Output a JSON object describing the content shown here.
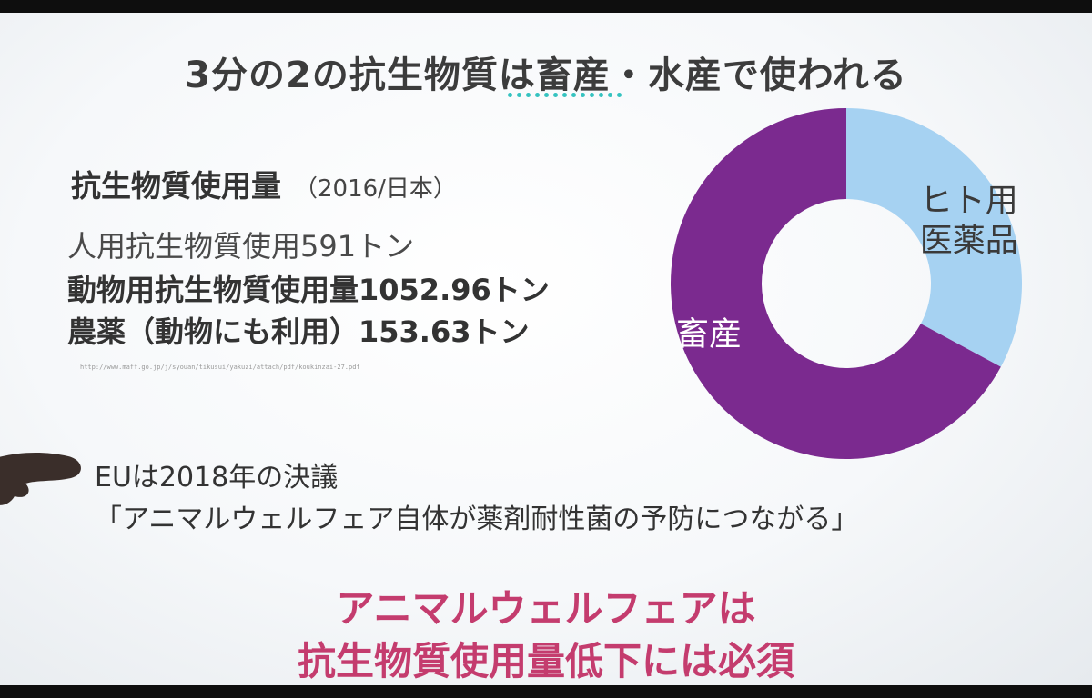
{
  "slide": {
    "title": "3分の2の抗生物質は畜産・水産で使われる",
    "usage": {
      "heading": "抗生物質使用量",
      "year": "（2016/日本）",
      "line1": "人用抗生物質使用591トン",
      "line2": "動物用抗生物質使用量1052.96トン",
      "line3": "農薬（動物にも利用）153.63トン",
      "source": "http://www.maff.go.jp/j/syouan/tikusui/yakuzi/attach/pdf/koukinzai-27.pdf"
    },
    "eu": {
      "line1": "EUは2018年の決議",
      "line2": "「アニマルウェルフェア自体が薬剤耐性菌の予防につながる」"
    },
    "conclusion": {
      "line1": "アニマルウェルフェアは",
      "line2": "抗生物質使用量低下には必須"
    },
    "colors": {
      "title": "#3c3c3c",
      "accent_dots": "#35c3c0",
      "conclusion": "#c43c6e"
    }
  },
  "chart_data": {
    "type": "pie",
    "donut": true,
    "title": "",
    "slices": [
      {
        "label": "ヒト用\n医薬品",
        "line1": "ヒト用",
        "line2": "医薬品",
        "value": 591,
        "color": "#a6d2f2",
        "label_color": "#3a3a3a"
      },
      {
        "label": "畜産",
        "value": 1206.59,
        "color": "#7b2a8f",
        "label_color": "#ffffff"
      }
    ],
    "start_angle_deg": 0,
    "direction": "clockwise",
    "legend": "none"
  }
}
